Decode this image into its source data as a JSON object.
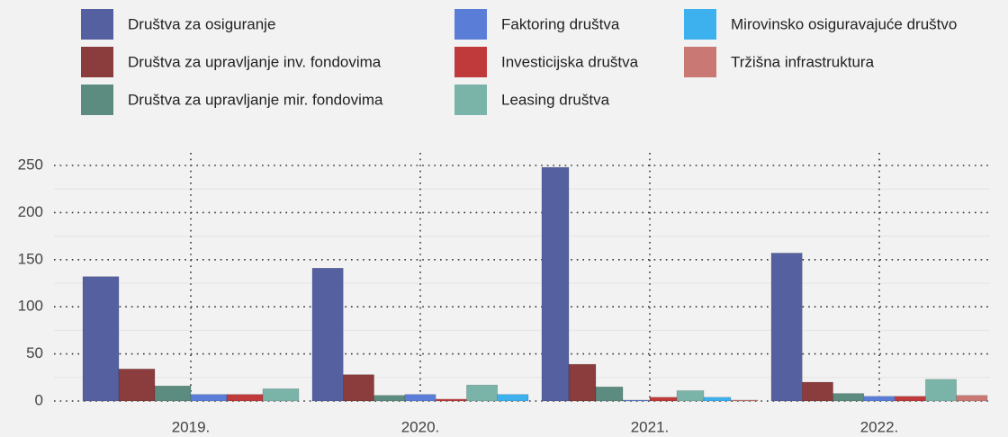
{
  "chart_data": {
    "type": "bar",
    "categories": [
      "2019.",
      "2020.",
      "2021.",
      "2022."
    ],
    "series": [
      {
        "name": "Društva za osiguranje",
        "color": "#5560a0",
        "values": [
          132,
          141,
          248,
          157
        ]
      },
      {
        "name": "Društva za upravljanje inv. fondovima",
        "color": "#8b3c3c",
        "values": [
          34,
          28,
          39,
          20
        ]
      },
      {
        "name": "Društva za upravljanje mir. fondovima",
        "color": "#5c8b7f",
        "values": [
          16,
          6,
          15,
          8
        ]
      },
      {
        "name": "Faktoring društva",
        "color": "#5a7ed8",
        "values": [
          7,
          7,
          1,
          5
        ]
      },
      {
        "name": "Investicijska društva",
        "color": "#c03a3b",
        "values": [
          7,
          2,
          4,
          5
        ]
      },
      {
        "name": "Leasing društva",
        "color": "#7ab4a9",
        "values": [
          13,
          17,
          11,
          23
        ]
      },
      {
        "name": "Mirovinsko osiguravajuće društvo",
        "color": "#3cb1ee",
        "values": [
          null,
          7,
          4,
          null
        ]
      },
      {
        "name": "Tržišna infrastruktura",
        "color": "#c97873",
        "values": [
          null,
          null,
          1,
          6
        ]
      }
    ],
    "ylim": [
      0,
      250
    ],
    "yticks": [
      0,
      50,
      100,
      150,
      200,
      250
    ],
    "grid": true
  }
}
